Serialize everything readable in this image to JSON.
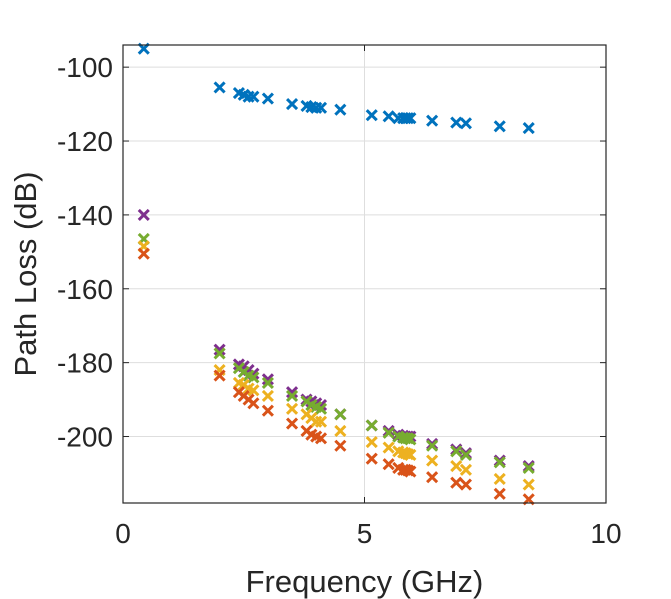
{
  "chart_data": {
    "type": "scatter",
    "title": "",
    "xlabel": "Frequency (GHz)",
    "ylabel": "Path Loss (dB)",
    "xlim": [
      0,
      10
    ],
    "ylim": [
      -218,
      -94
    ],
    "xticks": [
      0,
      5,
      10
    ],
    "yticks": [
      -100,
      -120,
      -140,
      -160,
      -180,
      -200
    ],
    "grid": true,
    "marker": "x",
    "frequencies": [
      0.43,
      2.0,
      2.4,
      2.5,
      2.6,
      2.7,
      3.0,
      3.5,
      3.8,
      3.9,
      4.0,
      4.1,
      4.5,
      5.15,
      5.5,
      5.7,
      5.8,
      5.85,
      5.9,
      5.95,
      6.4,
      6.9,
      7.1,
      7.8,
      8.4
    ],
    "series": [
      {
        "color": "#0072BD",
        "values": [
          -95,
          -105.5,
          -107,
          -107.5,
          -108,
          -108,
          -108.5,
          -110,
          -110.5,
          -110.8,
          -111,
          -111,
          -111.5,
          -113,
          -113.3,
          -113.8,
          -113.8,
          -113.8,
          -113.8,
          -113.8,
          -114.5,
          -115,
          -115.2,
          -116,
          -116.5
        ]
      },
      {
        "color": "#7E2F8E",
        "values": [
          -140,
          -176.5,
          -180.5,
          -181,
          -182,
          -183,
          -184.5,
          -188,
          -190,
          -190.5,
          -191,
          -191.5,
          -194,
          -197,
          -198.5,
          -199.5,
          -199.8,
          -200,
          -200,
          -200,
          -202,
          -203.5,
          -204.5,
          -206.5,
          -208
        ]
      },
      {
        "color": "#77AC30",
        "values": [
          -146.5,
          -177.5,
          -181.5,
          -182.5,
          -183.5,
          -184,
          -185.5,
          -189,
          -190.5,
          -191.5,
          -192,
          -192.5,
          -194,
          -197,
          -199,
          -200,
          -200.3,
          -200.5,
          -200.5,
          -200.8,
          -202.5,
          -204,
          -205,
          -207,
          -208.5
        ]
      },
      {
        "color": "#EDB120",
        "values": [
          -148.5,
          -182,
          -185.5,
          -186,
          -187,
          -187.5,
          -189,
          -192.5,
          -194,
          -195,
          -196,
          -196,
          -198.5,
          -201.5,
          -203,
          -204,
          -204.3,
          -204.5,
          -204.8,
          -205,
          -206.5,
          -208,
          -209,
          -211.5,
          -213
        ]
      },
      {
        "color": "#D95319",
        "values": [
          -150.5,
          -183.5,
          -188,
          -189,
          -190,
          -191,
          -193,
          -196.5,
          -198.5,
          -199.5,
          -200,
          -200.5,
          -202.5,
          -206,
          -207.5,
          -208.5,
          -209,
          -209,
          -209.2,
          -209.5,
          -211,
          -212.5,
          -213,
          -215.5,
          -217
        ]
      }
    ]
  }
}
